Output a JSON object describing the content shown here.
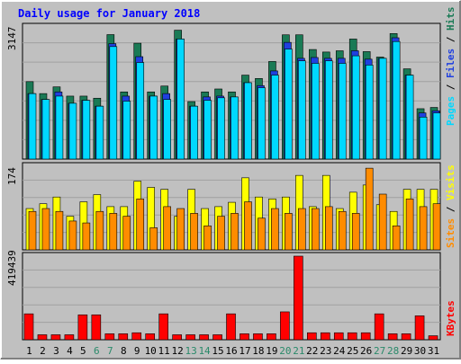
{
  "title": "Daily usage for January 2018",
  "colors": {
    "background": "#c0c0c0",
    "frame_light": "#ffffff",
    "frame_dark": "#808080",
    "grid": "#a0a0a0",
    "title": "#0000ff",
    "hits": "#1a7a55",
    "files": "#1f40e0",
    "pages": "#00d8ff",
    "visits": "#ffff00",
    "sites": "#ff8c00",
    "kbytes": "#ff0000",
    "weekday_label": "#000000",
    "weekend_label": "#2a8a6a"
  },
  "labels": {
    "top_max": "3147",
    "mid_max": "174",
    "bottom_max": "419439",
    "hits": "Hits",
    "files": "Files",
    "pages": "Pages",
    "visits": "Visits",
    "sites": "Sites",
    "kbytes": "KBytes",
    "separator": " / "
  },
  "chart_data": [
    {
      "type": "bar",
      "categories": [
        "1",
        "2",
        "3",
        "4",
        "5",
        "6",
        "7",
        "8",
        "9",
        "10",
        "11",
        "12",
        "13",
        "14",
        "15",
        "16",
        "17",
        "18",
        "19",
        "20",
        "21",
        "22",
        "23",
        "24",
        "25",
        "26",
        "27",
        "28",
        "29",
        "30",
        "31"
      ],
      "weekend_days": [
        "6",
        "7",
        "13",
        "14",
        "20",
        "21",
        "27",
        "28"
      ],
      "ylim": [
        0,
        3147
      ],
      "series": [
        {
          "name": "Hits",
          "values": [
            1845,
            1560,
            1720,
            1500,
            1500,
            1450,
            2965,
            1600,
            2760,
            1600,
            1740,
            3070,
            1370,
            1600,
            1670,
            1600,
            2000,
            1920,
            2325,
            2960,
            2960,
            2610,
            2550,
            2580,
            2860,
            2560,
            2430,
            2990,
            2150,
            1200,
            1230
          ]
        },
        {
          "name": "Files",
          "values": [
            1560,
            1420,
            1600,
            1330,
            1400,
            1260,
            2750,
            1500,
            2440,
            1500,
            1560,
            2860,
            1260,
            1480,
            1500,
            1480,
            1820,
            1750,
            2100,
            2780,
            2400,
            2420,
            2400,
            2400,
            2580,
            2380,
            2400,
            2890,
            2000,
            1100,
            1150
          ]
        },
        {
          "name": "Pages",
          "values": [
            1560,
            1420,
            1500,
            1330,
            1400,
            1260,
            2680,
            1380,
            2300,
            1500,
            1420,
            2860,
            1260,
            1400,
            1460,
            1480,
            1820,
            1700,
            2000,
            2620,
            2340,
            2280,
            2340,
            2280,
            2460,
            2240,
            2400,
            2800,
            2000,
            1000,
            1100
          ]
        }
      ]
    },
    {
      "type": "bar",
      "categories": [
        "1",
        "2",
        "3",
        "4",
        "5",
        "6",
        "7",
        "8",
        "9",
        "10",
        "11",
        "12",
        "13",
        "14",
        "15",
        "16",
        "17",
        "18",
        "19",
        "20",
        "21",
        "22",
        "23",
        "24",
        "25",
        "26",
        "27",
        "28",
        "29",
        "30",
        "31"
      ],
      "ylim": [
        0,
        174
      ],
      "series": [
        {
          "name": "Visits",
          "values": [
            86,
            96,
            110,
            70,
            100,
            115,
            90,
            90,
            143,
            130,
            126,
            70,
            126,
            86,
            90,
            99,
            150,
            110,
            106,
            110,
            155,
            90,
            155,
            86,
            120,
            135,
            94,
            80,
            126,
            126,
            126
          ]
        },
        {
          "name": "Sites",
          "values": [
            80,
            86,
            80,
            60,
            56,
            80,
            76,
            70,
            106,
            46,
            90,
            86,
            76,
            50,
            70,
            76,
            100,
            66,
            86,
            76,
            86,
            86,
            90,
            80,
            76,
            170,
            116,
            50,
            106,
            90,
            96
          ]
        }
      ]
    },
    {
      "type": "bar",
      "categories": [
        "1",
        "2",
        "3",
        "4",
        "5",
        "6",
        "7",
        "8",
        "9",
        "10",
        "11",
        "12",
        "13",
        "14",
        "15",
        "16",
        "17",
        "18",
        "19",
        "20",
        "21",
        "22",
        "23",
        "24",
        "25",
        "26",
        "27",
        "28",
        "29",
        "30",
        "31"
      ],
      "ylim": [
        0,
        419439
      ],
      "series": [
        {
          "name": "KBytes",
          "values": [
            130000,
            25000,
            25000,
            25000,
            125000,
            125000,
            30000,
            30000,
            35000,
            30000,
            130000,
            25000,
            25000,
            25000,
            25000,
            130000,
            30000,
            30000,
            30000,
            140000,
            419439,
            35000,
            35000,
            35000,
            35000,
            35000,
            130000,
            30000,
            30000,
            120000,
            20000
          ]
        }
      ]
    }
  ]
}
